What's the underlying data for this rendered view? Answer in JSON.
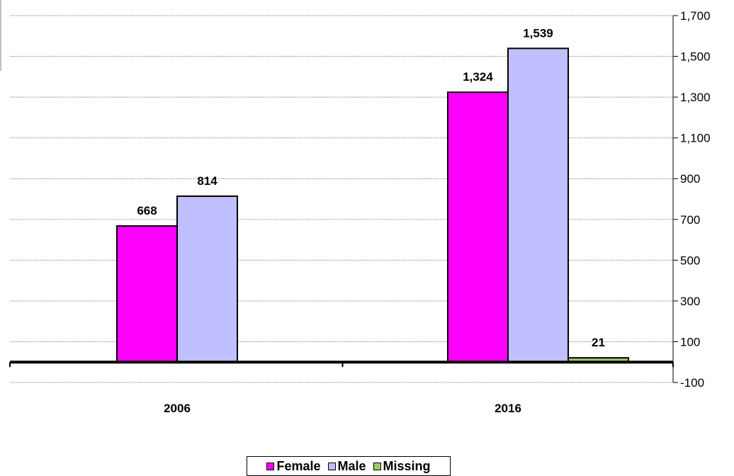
{
  "chart_data": {
    "type": "bar",
    "categories": [
      "2006",
      "2016"
    ],
    "series": [
      {
        "name": "Female",
        "color": "#ff00ff",
        "values": [
          668,
          1324
        ],
        "labels": [
          "668",
          "1,324"
        ]
      },
      {
        "name": "Male",
        "color": "#c0c0ff",
        "values": [
          814,
          1539
        ],
        "labels": [
          "814",
          "1,539"
        ]
      },
      {
        "name": "Missing",
        "color": "#99cc66",
        "values": [
          null,
          21
        ],
        "labels": [
          "",
          "21"
        ]
      }
    ],
    "y_axis": {
      "position": "right",
      "ylim": [
        -100,
        1700
      ],
      "ticks": [
        -100,
        100,
        300,
        500,
        700,
        900,
        1100,
        1300,
        1500,
        1700
      ],
      "tick_labels": [
        "-100",
        "100",
        "300",
        "500",
        "700",
        "900",
        "1,100",
        "1,300",
        "1,500",
        "1,700"
      ]
    },
    "grid": true,
    "legend_position": "bottom-center",
    "title": "",
    "xlabel": "",
    "ylabel": ""
  }
}
